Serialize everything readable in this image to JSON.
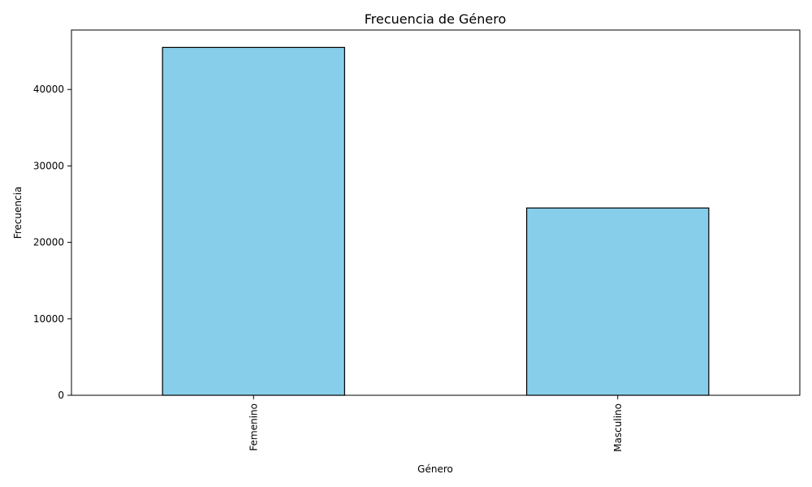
{
  "chart_data": {
    "type": "bar",
    "title": "Frecuencia de Género",
    "xlabel": "Género",
    "ylabel": "Frecuencia",
    "categories": [
      "Femenino",
      "Masculino"
    ],
    "values": [
      45500,
      24500
    ],
    "ylim": [
      0,
      47775
    ],
    "yticks": [
      0,
      10000,
      20000,
      30000,
      40000
    ],
    "ytick_labels": [
      "0",
      "10000",
      "20000",
      "30000",
      "40000"
    ],
    "grid": false,
    "legend": null,
    "colors": {
      "bar_fill": "#87CEEB",
      "bar_edge": "#000000",
      "axis": "#000000",
      "background": "#ffffff"
    }
  }
}
